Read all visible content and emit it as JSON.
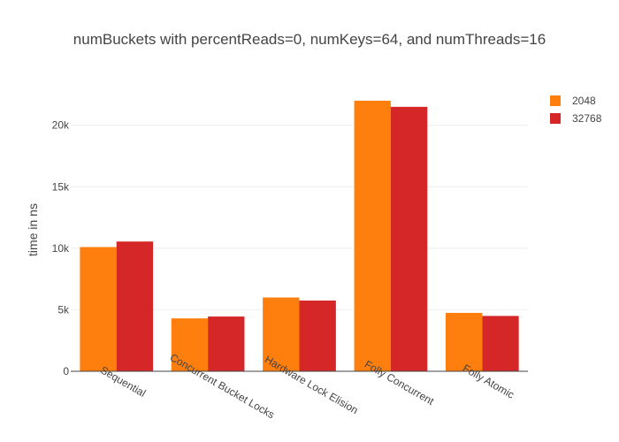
{
  "chart_data": {
    "type": "bar",
    "title": "numBuckets with percentReads=0, numKeys=64, and numThreads=16",
    "xlabel": "",
    "ylabel": "time in ns",
    "categories": [
      "Sequential",
      "Concurrent Bucket Locks",
      "Hardware Lock Elision",
      "Folly Concurrent",
      "Folly Atomic"
    ],
    "series": [
      {
        "name": "2048",
        "color": "#ff7f0e",
        "values": [
          10100,
          4300,
          6000,
          22000,
          4750
        ]
      },
      {
        "name": "32768",
        "color": "#d62728",
        "values": [
          10550,
          4450,
          5750,
          21500,
          4500
        ]
      }
    ],
    "ylim": [
      0,
      23000
    ],
    "yticks": [
      0,
      5000,
      10000,
      15000,
      20000
    ],
    "ytick_labels": [
      "0",
      "5k",
      "10k",
      "15k",
      "20k"
    ],
    "grid": true,
    "legend_position": "top-right"
  }
}
